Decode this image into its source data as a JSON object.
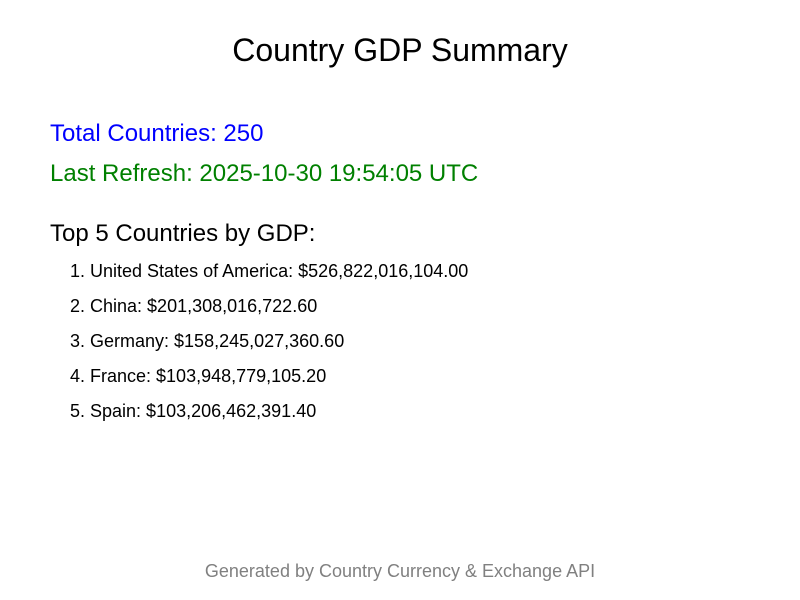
{
  "title": "Country GDP Summary",
  "total_countries": "Total Countries: 250",
  "last_refresh": "Last Refresh: 2025-10-30 19:54:05 UTC",
  "top_heading": "Top 5 Countries by GDP:",
  "top_countries": [
    "1. United States of America: $526,822,016,104.00",
    "2. China: $201,308,016,722.60",
    "3. Germany: $158,245,027,360.60",
    "4. France: $103,948,779,105.20",
    "5. Spain: $103,206,462,391.40"
  ],
  "footer": "Generated by Country Currency & Exchange API",
  "colors": {
    "total_countries": "#0000ff",
    "last_refresh": "#008000",
    "footer": "#808080"
  }
}
